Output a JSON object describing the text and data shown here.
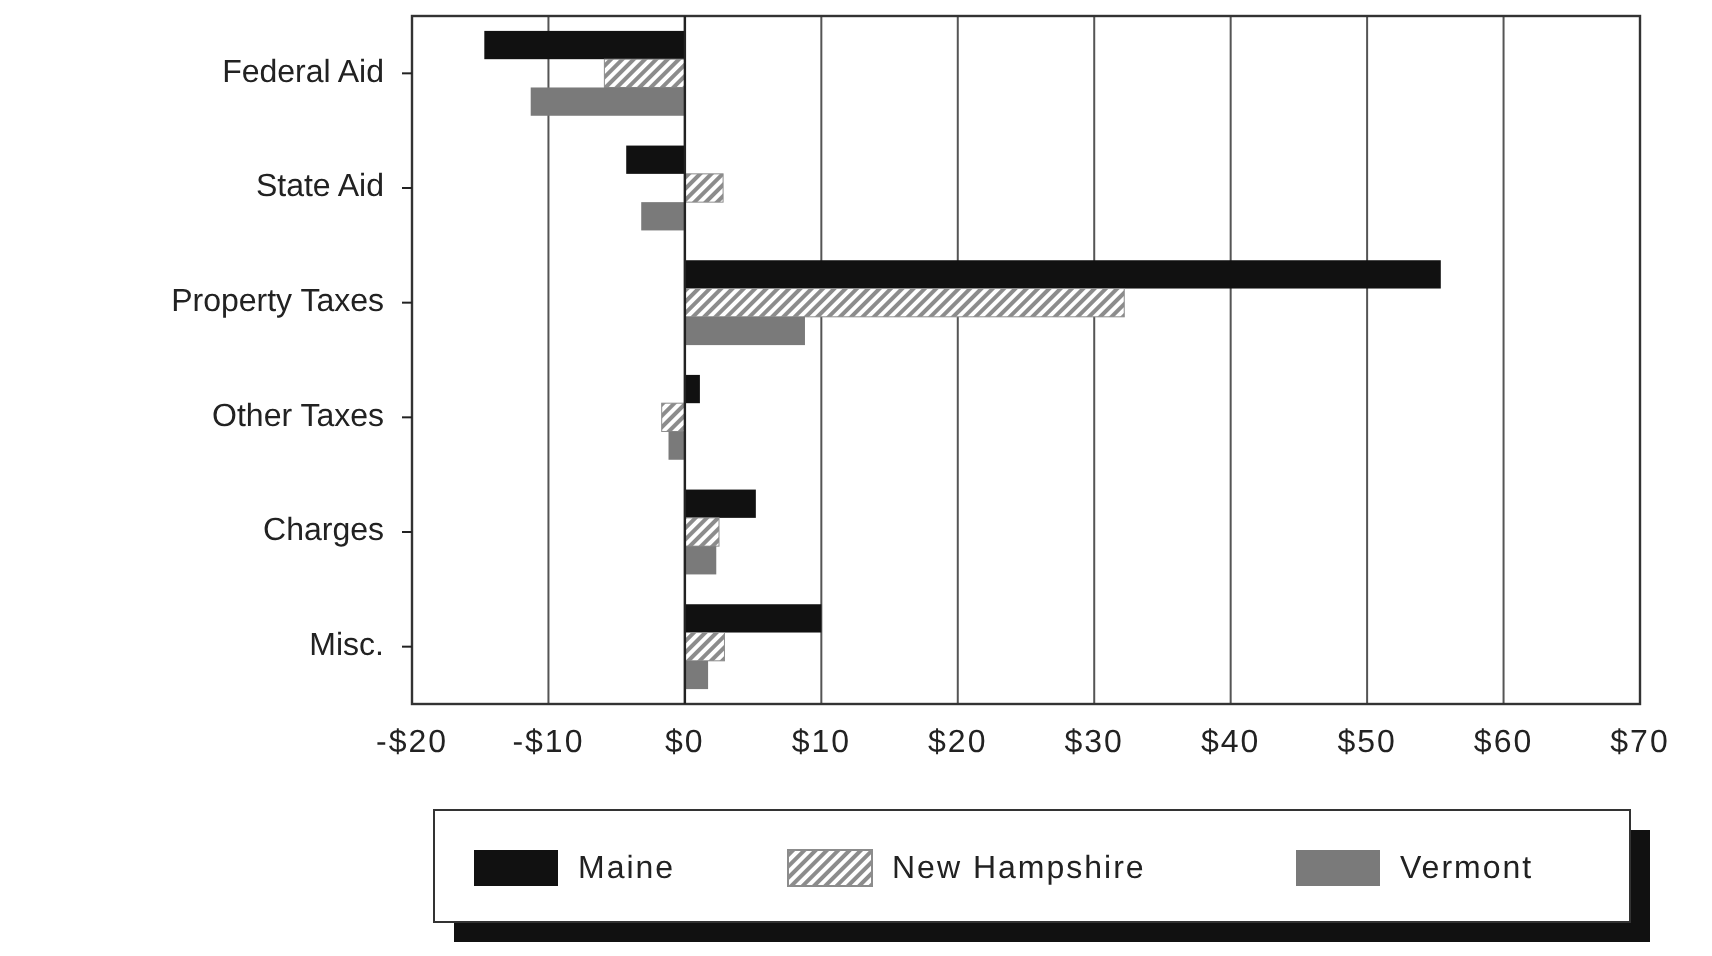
{
  "chart_data": {
    "type": "bar",
    "orientation": "horizontal",
    "categories": [
      "Federal Aid",
      "State Aid",
      "Property Taxes",
      "Other Taxes",
      "Charges",
      "Misc."
    ],
    "series": [
      {
        "name": "Maine",
        "color": "#111111",
        "values": [
          -14.7,
          -4.3,
          55.4,
          1.1,
          5.2,
          10
        ]
      },
      {
        "name": "New Hampshire",
        "color": "#8c8c8c",
        "values": [
          -5.9,
          2.8,
          32.2,
          -1.7,
          2.5,
          2.9
        ]
      },
      {
        "name": "Vermont",
        "color": "#7a7a7a",
        "values": [
          -11.3,
          -3.2,
          8.8,
          -1.2,
          2.3,
          1.7
        ]
      }
    ],
    "xlim": [
      -20,
      70
    ],
    "xticks": [
      {
        "value": -20,
        "label": "-$20"
      },
      {
        "value": -10,
        "label": "-$10"
      },
      {
        "value": 0,
        "label": "$0"
      },
      {
        "value": 10,
        "label": "$10"
      },
      {
        "value": 20,
        "label": "$20"
      },
      {
        "value": 30,
        "label": "$30"
      },
      {
        "value": 40,
        "label": "$40"
      },
      {
        "value": 50,
        "label": "$50"
      },
      {
        "value": 60,
        "label": "$60"
      },
      {
        "value": 70,
        "label": "$70"
      }
    ],
    "grid": "x",
    "legend": "bottom"
  }
}
